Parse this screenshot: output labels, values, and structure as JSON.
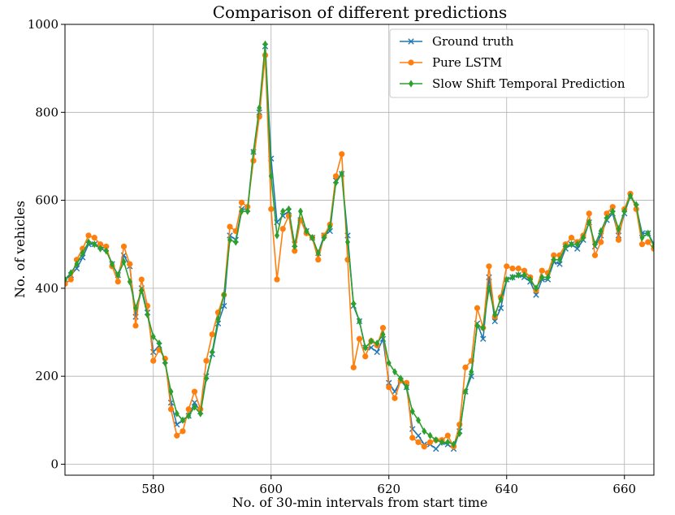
{
  "chart_data": {
    "type": "line",
    "title": "Comparison of different predictions",
    "xlabel": "No. of 30-min intervals from start time",
    "ylabel": "No. of vehicles",
    "xlim": [
      565,
      665
    ],
    "ylim": [
      -25,
      1000
    ],
    "xticks": [
      580,
      600,
      620,
      640,
      660
    ],
    "yticks": [
      0,
      200,
      400,
      600,
      800,
      1000
    ],
    "grid": true,
    "legend_position": "top-right",
    "x": [
      565,
      566,
      567,
      568,
      569,
      570,
      571,
      572,
      573,
      574,
      575,
      576,
      577,
      578,
      579,
      580,
      581,
      582,
      583,
      584,
      585,
      586,
      587,
      588,
      589,
      590,
      591,
      592,
      593,
      594,
      595,
      596,
      597,
      598,
      599,
      600,
      601,
      602,
      603,
      604,
      605,
      606,
      607,
      608,
      609,
      610,
      611,
      612,
      613,
      614,
      615,
      616,
      617,
      618,
      619,
      620,
      621,
      622,
      623,
      624,
      625,
      626,
      627,
      628,
      629,
      630,
      631,
      632,
      633,
      634,
      635,
      636,
      637,
      638,
      639,
      640,
      641,
      642,
      643,
      644,
      645,
      646,
      647,
      648,
      649,
      650,
      651,
      652,
      653,
      654,
      655,
      656,
      657,
      658,
      659,
      660,
      661,
      662,
      663,
      664,
      665
    ],
    "series": [
      {
        "name": "Ground truth",
        "color": "#1f77b4",
        "marker": "x",
        "values": [
          420,
          430,
          445,
          470,
          500,
          500,
          495,
          490,
          455,
          430,
          475,
          450,
          335,
          400,
          345,
          255,
          270,
          235,
          140,
          90,
          100,
          110,
          140,
          120,
          200,
          250,
          320,
          360,
          520,
          510,
          580,
          580,
          710,
          800,
          950,
          695,
          550,
          565,
          575,
          500,
          555,
          530,
          515,
          480,
          520,
          530,
          645,
          660,
          520,
          360,
          325,
          265,
          265,
          255,
          285,
          185,
          165,
          190,
          175,
          80,
          65,
          45,
          45,
          35,
          50,
          45,
          35,
          75,
          165,
          200,
          320,
          285,
          425,
          325,
          355,
          420,
          425,
          430,
          425,
          415,
          385,
          420,
          420,
          460,
          455,
          490,
          500,
          490,
          510,
          550,
          495,
          520,
          555,
          570,
          520,
          570,
          610,
          585,
          525,
          525,
          500
        ]
      },
      {
        "name": "Pure LSTM",
        "color": "#ff7f0e",
        "marker": "o",
        "values": [
          410,
          420,
          465,
          490,
          520,
          515,
          500,
          495,
          450,
          415,
          495,
          455,
          315,
          420,
          360,
          235,
          260,
          240,
          125,
          65,
          75,
          125,
          165,
          125,
          235,
          295,
          345,
          385,
          540,
          530,
          595,
          585,
          690,
          790,
          930,
          580,
          420,
          535,
          565,
          485,
          555,
          525,
          515,
          465,
          520,
          545,
          655,
          705,
          465,
          220,
          285,
          245,
          280,
          270,
          310,
          175,
          150,
          190,
          185,
          60,
          50,
          40,
          50,
          55,
          55,
          65,
          40,
          90,
          220,
          235,
          355,
          310,
          450,
          335,
          380,
          450,
          445,
          445,
          440,
          425,
          395,
          440,
          435,
          475,
          475,
          500,
          515,
          505,
          520,
          570,
          475,
          505,
          570,
          585,
          510,
          580,
          615,
          580,
          500,
          505,
          490
        ]
      },
      {
        "name": "Slow Shift Temporal Prediction",
        "color": "#2ca02c",
        "marker": "d",
        "values": [
          420,
          435,
          455,
          480,
          505,
          500,
          490,
          485,
          455,
          430,
          460,
          415,
          355,
          395,
          340,
          290,
          275,
          230,
          165,
          115,
          100,
          110,
          130,
          115,
          195,
          255,
          330,
          385,
          510,
          505,
          575,
          575,
          710,
          810,
          955,
          655,
          520,
          575,
          580,
          495,
          575,
          530,
          515,
          480,
          515,
          540,
          640,
          660,
          505,
          365,
          325,
          265,
          280,
          275,
          295,
          230,
          210,
          195,
          175,
          120,
          100,
          75,
          65,
          55,
          50,
          50,
          45,
          70,
          165,
          210,
          315,
          310,
          400,
          340,
          375,
          420,
          425,
          430,
          430,
          420,
          400,
          425,
          425,
          465,
          465,
          495,
          500,
          500,
          515,
          550,
          500,
          530,
          560,
          575,
          535,
          575,
          610,
          590,
          515,
          525,
          495
        ]
      }
    ]
  }
}
